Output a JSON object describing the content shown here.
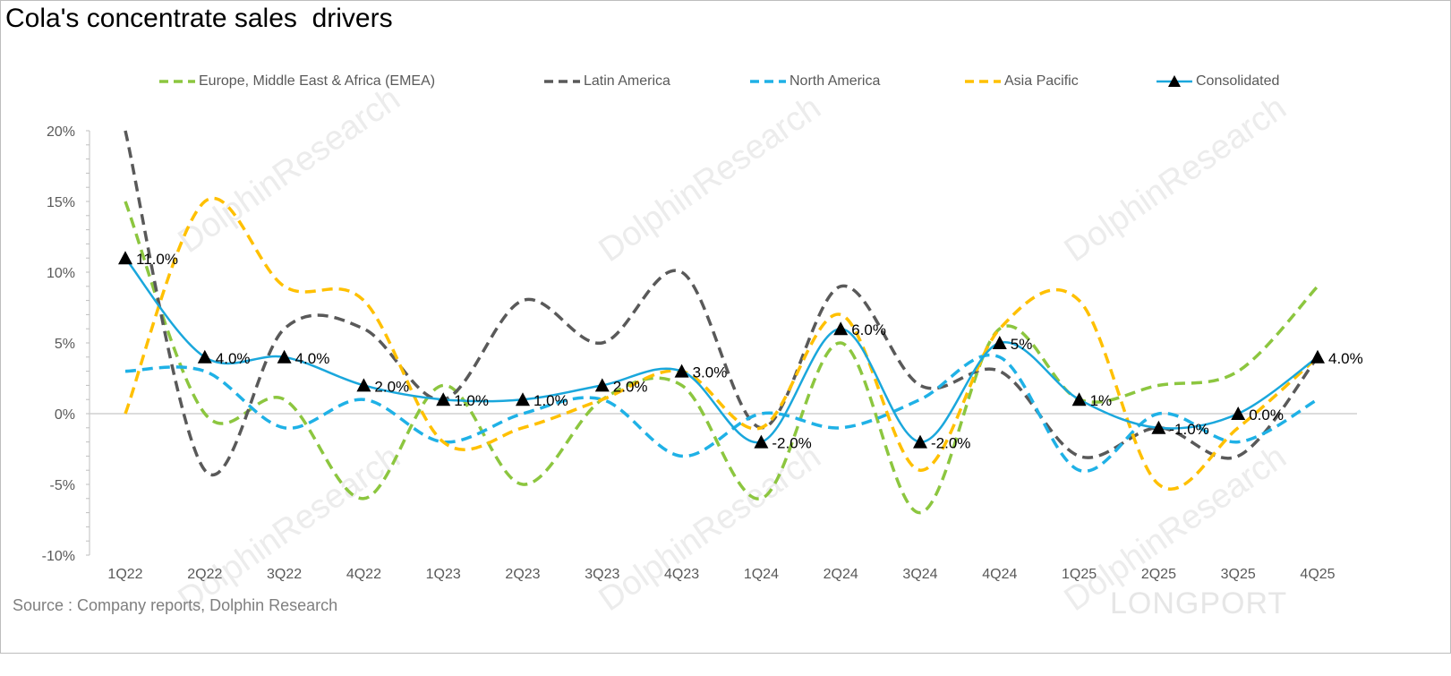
{
  "title": "Cola's concentrate sales  drivers",
  "source": "Source : Company reports, Dolphin Research",
  "watermark": "DolphinResearch",
  "brand": "LONGPORT",
  "chart_data": {
    "type": "line",
    "title": "Cola's concentrate sales  drivers",
    "categories": [
      "1Q22",
      "2Q22",
      "3Q22",
      "4Q22",
      "1Q23",
      "2Q23",
      "3Q23",
      "4Q23",
      "1Q24",
      "2Q24",
      "3Q24",
      "4Q24",
      "1Q25",
      "2Q25",
      "3Q25",
      "4Q25"
    ],
    "ylim": [
      -10,
      20
    ],
    "yticks": [
      "20%",
      "15%",
      "10%",
      "5%",
      "0%",
      "-5%",
      "-10%"
    ],
    "ytick_values": [
      20,
      15,
      10,
      5,
      0,
      -5,
      -10
    ],
    "legend_position": "top",
    "grid": false,
    "smoothed": true,
    "series": [
      {
        "name": "Europe, Middle East & Africa (EMEA)",
        "color": "#8cc63f",
        "style": "dashed",
        "values": [
          15,
          0,
          1,
          -6,
          2,
          -5,
          1,
          2,
          -6,
          5,
          -7,
          6,
          1,
          2,
          3,
          9
        ]
      },
      {
        "name": "Latin America",
        "color": "#595959",
        "style": "dashed",
        "values": [
          20,
          -4,
          6,
          6,
          1,
          8,
          5,
          10,
          -1,
          9,
          2,
          3,
          -3,
          -1,
          -3,
          4
        ]
      },
      {
        "name": "North America",
        "color": "#1fb1e6",
        "style": "dashed",
        "values": [
          3,
          3,
          -1,
          1,
          -2,
          0,
          1,
          -3,
          0,
          -1,
          1,
          4,
          -4,
          0,
          -2,
          1
        ]
      },
      {
        "name": "Asia Pacific",
        "color": "#ffc000",
        "style": "dashed",
        "values": [
          0,
          15,
          9,
          8,
          -2,
          -1,
          1,
          3,
          -1,
          7,
          -4,
          6,
          8,
          -5,
          -1,
          4
        ]
      },
      {
        "name": "Consolidated",
        "color": "#1aa7dc",
        "style": "solid",
        "marker": "triangle",
        "values": [
          11,
          4,
          4,
          2,
          1,
          1,
          2,
          3,
          -2,
          6,
          -2,
          5,
          1,
          -1,
          0,
          4
        ],
        "labels": [
          "11.0%",
          "4.0%",
          "4.0%",
          "2.0%",
          "1.0%",
          "1.0%",
          "2.0%",
          "3.0%",
          "-2.0%",
          "6.0%",
          "-2.0%",
          "5%",
          "1%",
          "-1.0%",
          "0.0%",
          "4.0%"
        ]
      }
    ]
  }
}
